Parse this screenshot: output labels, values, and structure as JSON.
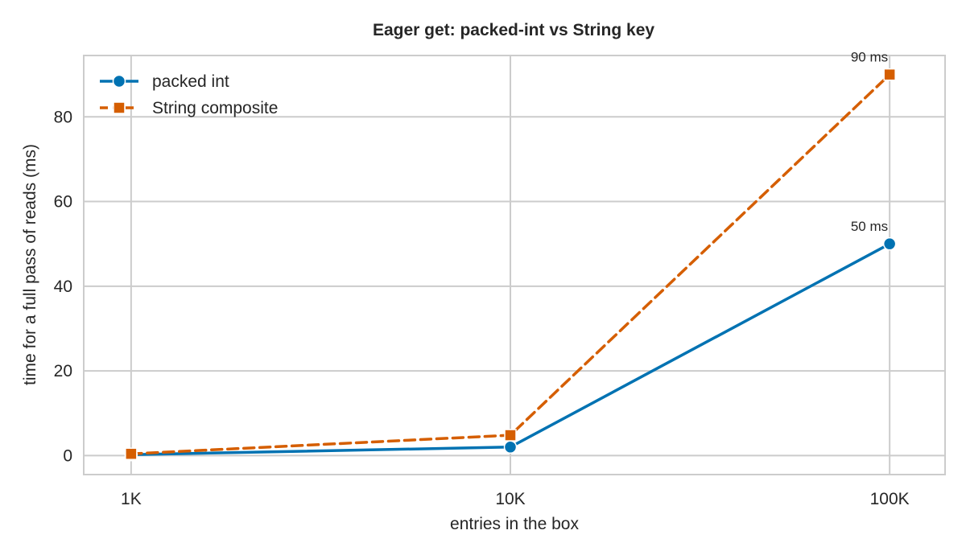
{
  "chart_data": {
    "type": "line",
    "title": "Eager get: packed-int vs String key",
    "xlabel": "entries in the box",
    "ylabel": "time for a full pass of reads (ms)",
    "x_scale": "log",
    "categories": [
      "1K",
      "10K",
      "100K"
    ],
    "x": [
      1000,
      10000,
      100000
    ],
    "xlim": [
      750,
      140000
    ],
    "ylim": [
      -4.5,
      94.5
    ],
    "yticks": [
      0,
      20,
      40,
      60,
      80
    ],
    "grid": true,
    "legend_position": "top-left",
    "series": [
      {
        "name": "packed int",
        "values": [
          0.2,
          2.0,
          50
        ],
        "color": "#0072B2",
        "marker": "circle",
        "line_style": "solid"
      },
      {
        "name": "String composite",
        "values": [
          0.4,
          4.8,
          90
        ],
        "color": "#D55E00",
        "marker": "square",
        "line_style": "dashed"
      }
    ],
    "annotations": [
      {
        "series": 1,
        "point": 2,
        "text": "90 ms"
      },
      {
        "series": 0,
        "point": 2,
        "text": "50 ms"
      }
    ]
  }
}
